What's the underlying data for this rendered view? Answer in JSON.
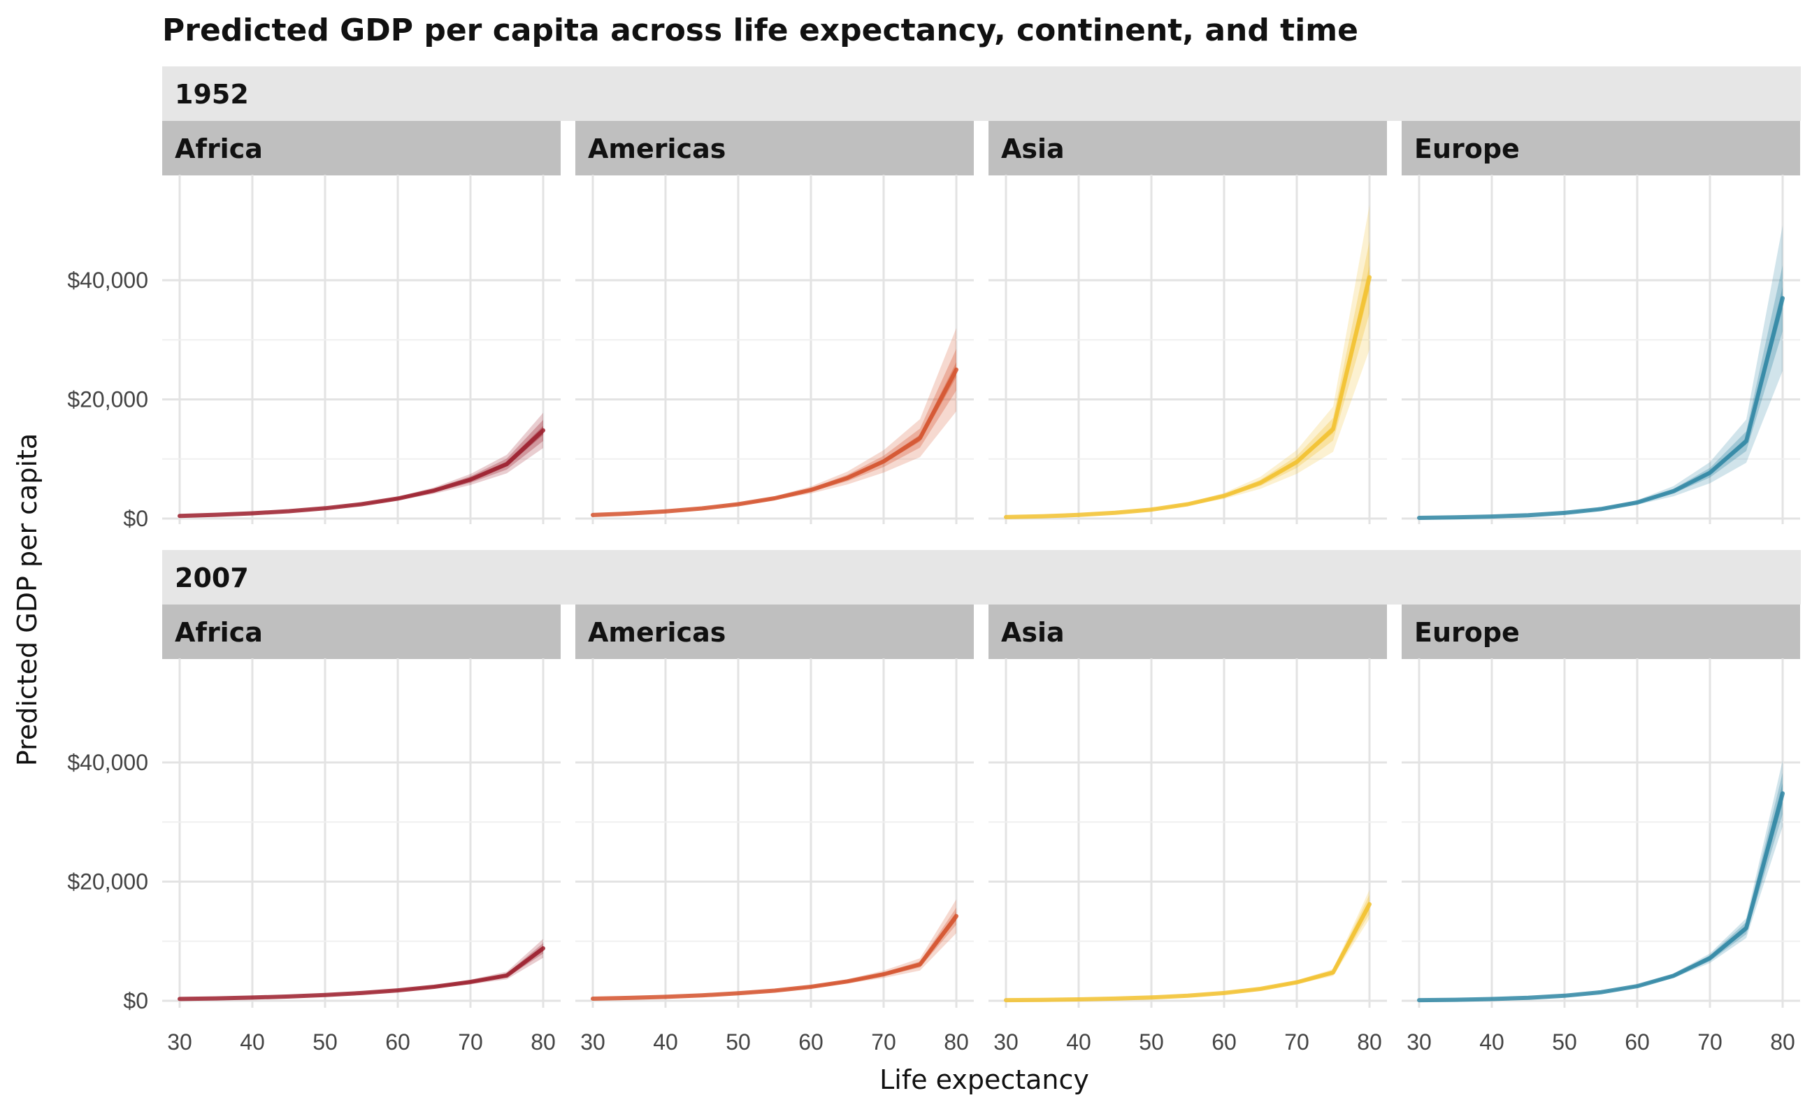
{
  "chart_data": {
    "type": "line",
    "title": "Predicted GDP per capita across life expectancy, continent, and time",
    "xlabel": "Life expectancy",
    "ylabel": "Predicted GDP per capita",
    "xlim": [
      30,
      80
    ],
    "ylim": [
      0,
      52000
    ],
    "x_ticks": [
      30,
      40,
      50,
      60,
      70,
      80
    ],
    "y_ticks": [
      {
        "value": 0,
        "label": "$0"
      },
      {
        "value": 20000,
        "label": "$20,000"
      },
      {
        "value": 40000,
        "label": "$40,000"
      }
    ],
    "grid": true,
    "legend": "none",
    "facet_rows": [
      "1952",
      "2007"
    ],
    "facet_cols": [
      "Africa",
      "Americas",
      "Asia",
      "Europe"
    ],
    "colors": {
      "Africa": "#9b1d2b",
      "Americas": "#d4512b",
      "Asia": "#f2c12e",
      "Europe": "#2f86a3"
    },
    "x": [
      30,
      35,
      40,
      45,
      50,
      55,
      60,
      65,
      70,
      75,
      80
    ],
    "panels": [
      {
        "year": "1952",
        "continent": "Africa",
        "values": [
          450,
          630,
          880,
          1230,
          1720,
          2400,
          3350,
          4700,
          6550,
          9150,
          14800
        ],
        "ribbon_widths": [
          0.05,
          0.12,
          0.2
        ]
      },
      {
        "year": "1952",
        "continent": "Americas",
        "values": [
          600,
          850,
          1200,
          1700,
          2400,
          3400,
          4800,
          6800,
          9600,
          13500,
          25000
        ],
        "ribbon_widths": [
          0.05,
          0.14,
          0.28
        ]
      },
      {
        "year": "1952",
        "continent": "Asia",
        "values": [
          250,
          390,
          610,
          960,
          1500,
          2400,
          3800,
          6000,
          9500,
          15000,
          40500
        ],
        "ribbon_widths": [
          0.05,
          0.15,
          0.3
        ]
      },
      {
        "year": "1952",
        "continent": "Europe",
        "values": [
          120,
          200,
          340,
          560,
          950,
          1600,
          2700,
          4600,
          7700,
          13000,
          37000
        ],
        "ribbon_widths": [
          0.05,
          0.15,
          0.33
        ]
      },
      {
        "year": "2007",
        "continent": "Africa",
        "values": [
          300,
          400,
          540,
          720,
          960,
          1300,
          1750,
          2350,
          3150,
          4250,
          8800
        ],
        "ribbon_widths": [
          0.05,
          0.1,
          0.18
        ]
      },
      {
        "year": "2007",
        "continent": "Americas",
        "values": [
          350,
          480,
          660,
          900,
          1250,
          1700,
          2350,
          3250,
          4450,
          6100,
          14200
        ],
        "ribbon_widths": [
          0.05,
          0.1,
          0.2
        ]
      },
      {
        "year": "2007",
        "continent": "Asia",
        "values": [
          100,
          150,
          230,
          360,
          550,
          850,
          1300,
          2000,
          3100,
          4750,
          16200
        ],
        "ribbon_widths": [
          0.05,
          0.1,
          0.15
        ]
      },
      {
        "year": "2007",
        "continent": "Europe",
        "values": [
          100,
          170,
          290,
          490,
          840,
          1430,
          2450,
          4200,
          7150,
          12200,
          34800
        ],
        "ribbon_widths": [
          0.05,
          0.1,
          0.16
        ]
      }
    ]
  }
}
